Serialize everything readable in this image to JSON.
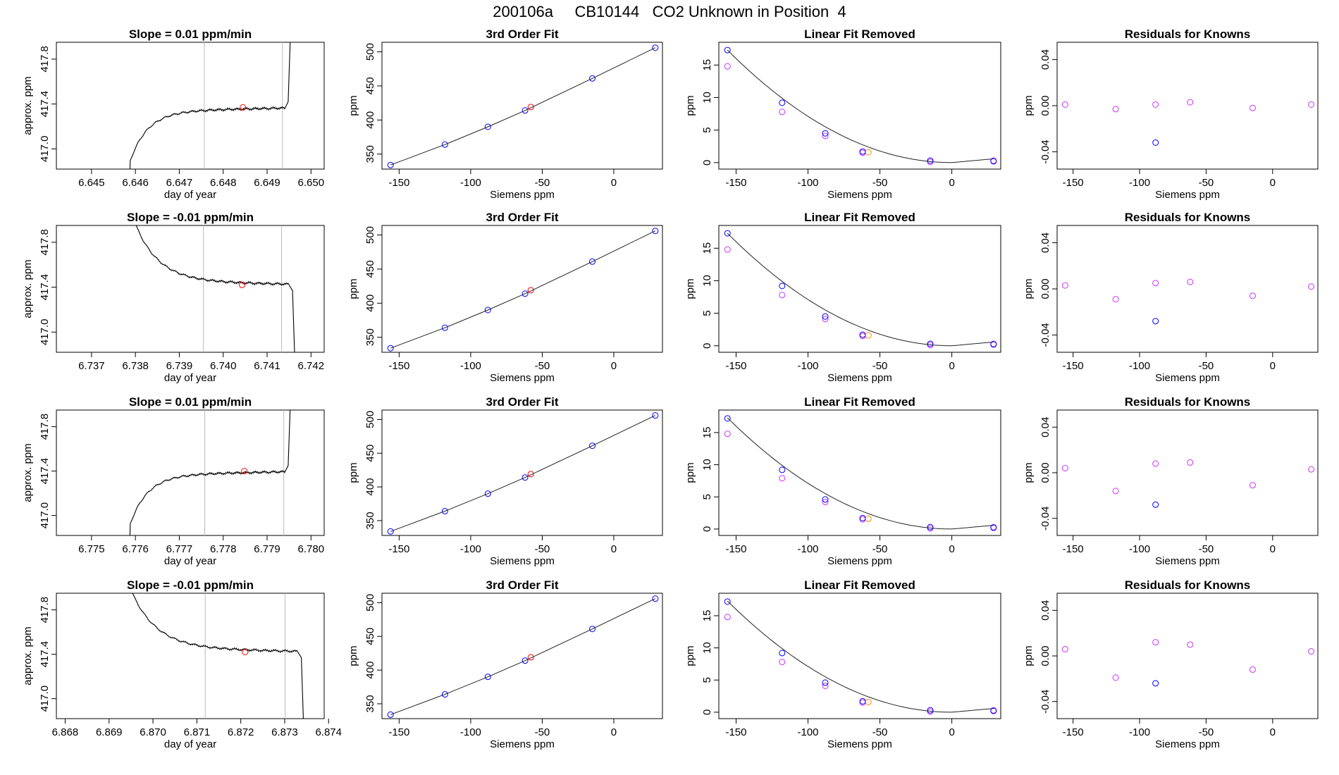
{
  "title": "200106a     CB10144   CO2 Unknown in Position  4",
  "colors": {
    "line": "#000000",
    "blue": "#0000ff",
    "magenta": "#cc33ff",
    "red": "#ff0000",
    "orange": "#ff8800",
    "gridline": "#bbbbbb"
  },
  "chart_data": [
    {
      "type": "line",
      "title": "Slope =  0.01  ppm/min",
      "xlabel": "day of year",
      "ylabel": "approx. ppm",
      "xlim": [
        6.6442,
        6.6503
      ],
      "ylim": [
        416.82,
        417.95
      ],
      "xticks": [
        6.645,
        6.646,
        6.647,
        6.648,
        6.649,
        6.65
      ],
      "xticklabels": [
        "6.645",
        "6.646",
        "6.647",
        "6.648",
        "6.649",
        "6.650"
      ],
      "yticks": [
        417.0,
        417.4,
        417.8
      ],
      "yticklabels": [
        "417.0",
        "417.4",
        "417.8"
      ],
      "vlines": [
        6.64757,
        6.64935
      ],
      "marker": [
        6.64845,
        417.37
      ],
      "shape": "rise",
      "x_end": [
        6.6458,
        6.6497
      ],
      "level": 417.37,
      "cut": 6.6494
    },
    {
      "type": "scatter",
      "title": "3rd Order Fit",
      "xlabel": "Siemens ppm",
      "ylabel": "ppm",
      "xlim": [
        -162,
        34
      ],
      "ylim": [
        328,
        514
      ],
      "xticks": [
        -150,
        -100,
        -50,
        0
      ],
      "xticklabels": [
        "-150",
        "-100",
        "-50",
        "0"
      ],
      "yticks": [
        350,
        400,
        450,
        500
      ],
      "yticklabels": [
        "350",
        "400",
        "450",
        "500"
      ],
      "points": [
        {
          "x": -156,
          "y": 334
        },
        {
          "x": -118,
          "y": 364
        },
        {
          "x": -88,
          "y": 390
        },
        {
          "x": -62,
          "y": 414
        },
        {
          "x": -15,
          "y": 461
        },
        {
          "x": 29,
          "y": 506
        }
      ],
      "unknown": {
        "x": -58,
        "y": 419
      }
    },
    {
      "type": "scatter",
      "title": "Linear Fit Removed",
      "xlabel": "Siemens ppm",
      "ylabel": "ppm",
      "xlim": [
        -162,
        34
      ],
      "ylim": [
        -1,
        18.5
      ],
      "xticks": [
        -150,
        -100,
        -50,
        0
      ],
      "xticklabels": [
        "-150",
        "-100",
        "-50",
        "0"
      ],
      "yticks": [
        0,
        5,
        10,
        15
      ],
      "yticklabels": [
        "0",
        "5",
        "10",
        "15"
      ],
      "blue_points": [
        {
          "x": -156,
          "y": 17.3
        },
        {
          "x": -118,
          "y": 9.2
        },
        {
          "x": -88,
          "y": 4.5
        },
        {
          "x": -62,
          "y": 1.7
        },
        {
          "x": -15,
          "y": 0.3
        },
        {
          "x": 29,
          "y": 0.2
        }
      ],
      "magenta_points": [
        {
          "x": -156,
          "y": 14.8
        },
        {
          "x": -118,
          "y": 7.8
        },
        {
          "x": -88,
          "y": 4.1
        },
        {
          "x": -62,
          "y": 1.5
        },
        {
          "x": -15,
          "y": 0.1
        },
        {
          "x": 29,
          "y": 0.3
        }
      ],
      "unknown": {
        "x": -58,
        "y": 1.6
      }
    },
    {
      "type": "scatter",
      "title": "Residuals for Knowns",
      "xlabel": "Siemens ppm",
      "ylabel": "ppm",
      "xlim": [
        -162,
        34
      ],
      "ylim": [
        -0.055,
        0.055
      ],
      "xticks": [
        -150,
        -100,
        -50,
        0
      ],
      "xticklabels": [
        "-150",
        "-100",
        "-50",
        "0"
      ],
      "yticks": [
        -0.04,
        0,
        0.04
      ],
      "yticklabels": [
        "-0.04",
        "0.00",
        "0.04"
      ],
      "magenta_points": [
        {
          "x": -156,
          "y": 0.001
        },
        {
          "x": -118,
          "y": -0.003
        },
        {
          "x": -88,
          "y": 0.001
        },
        {
          "x": -62,
          "y": 0.003
        },
        {
          "x": -15,
          "y": -0.002
        },
        {
          "x": 29,
          "y": 0.001
        }
      ],
      "blue_points": [
        {
          "x": -88,
          "y": -0.032
        }
      ]
    },
    {
      "type": "line",
      "title": "Slope =  -0.01  ppm/min",
      "xlabel": "day of year",
      "ylabel": "approx. ppm",
      "xlim": [
        6.7362,
        6.7423
      ],
      "ylim": [
        416.82,
        417.95
      ],
      "xticks": [
        6.737,
        6.738,
        6.739,
        6.74,
        6.741,
        6.742
      ],
      "xticklabels": [
        "6.737",
        "6.738",
        "6.739",
        "6.740",
        "6.741",
        "6.742"
      ],
      "yticks": [
        417.0,
        417.4,
        417.8
      ],
      "yticklabels": [
        "417.0",
        "417.4",
        "417.8"
      ],
      "vlines": [
        6.73955,
        6.74133
      ],
      "marker": [
        6.74043,
        417.42
      ],
      "shape": "fall",
      "x_end": [
        6.7378,
        6.7418
      ],
      "level": 417.42,
      "cut": 6.7415
    },
    {
      "type": "scatter",
      "title": "3rd Order Fit",
      "xlabel": "Siemens ppm",
      "ylabel": "ppm",
      "xlim": [
        -162,
        34
      ],
      "ylim": [
        328,
        514
      ],
      "xticks": [
        -150,
        -100,
        -50,
        0
      ],
      "xticklabels": [
        "-150",
        "-100",
        "-50",
        "0"
      ],
      "yticks": [
        350,
        400,
        450,
        500
      ],
      "yticklabels": [
        "350",
        "400",
        "450",
        "500"
      ],
      "points": [
        {
          "x": -156,
          "y": 334
        },
        {
          "x": -118,
          "y": 364
        },
        {
          "x": -88,
          "y": 390
        },
        {
          "x": -62,
          "y": 414
        },
        {
          "x": -15,
          "y": 461
        },
        {
          "x": 29,
          "y": 506
        }
      ],
      "unknown": {
        "x": -58,
        "y": 419
      }
    },
    {
      "type": "scatter",
      "title": "Linear Fit Removed",
      "xlabel": "Siemens ppm",
      "ylabel": "ppm",
      "xlim": [
        -162,
        34
      ],
      "ylim": [
        -1,
        18.5
      ],
      "xticks": [
        -150,
        -100,
        -50,
        0
      ],
      "xticklabels": [
        "-150",
        "-100",
        "-50",
        "0"
      ],
      "yticks": [
        0,
        5,
        10,
        15
      ],
      "yticklabels": [
        "0",
        "5",
        "10",
        "15"
      ],
      "blue_points": [
        {
          "x": -156,
          "y": 17.3
        },
        {
          "x": -118,
          "y": 9.2
        },
        {
          "x": -88,
          "y": 4.5
        },
        {
          "x": -62,
          "y": 1.7
        },
        {
          "x": -15,
          "y": 0.3
        },
        {
          "x": 29,
          "y": 0.2
        }
      ],
      "magenta_points": [
        {
          "x": -156,
          "y": 14.8
        },
        {
          "x": -118,
          "y": 7.8
        },
        {
          "x": -88,
          "y": 4.1
        },
        {
          "x": -62,
          "y": 1.5
        },
        {
          "x": -15,
          "y": 0.1
        },
        {
          "x": 29,
          "y": 0.3
        }
      ],
      "unknown": {
        "x": -58,
        "y": 1.6
      }
    },
    {
      "type": "scatter",
      "title": "Residuals for Knowns",
      "xlabel": "Siemens ppm",
      "ylabel": "ppm",
      "xlim": [
        -162,
        34
      ],
      "ylim": [
        -0.055,
        0.055
      ],
      "xticks": [
        -150,
        -100,
        -50,
        0
      ],
      "xticklabels": [
        "-150",
        "-100",
        "-50",
        "0"
      ],
      "yticks": [
        -0.04,
        0,
        0.04
      ],
      "yticklabels": [
        "-0.04",
        "0.00",
        "0.04"
      ],
      "magenta_points": [
        {
          "x": -156,
          "y": 0.003
        },
        {
          "x": -118,
          "y": -0.009
        },
        {
          "x": -88,
          "y": 0.005
        },
        {
          "x": -62,
          "y": 0.006
        },
        {
          "x": -15,
          "y": -0.006
        },
        {
          "x": 29,
          "y": 0.002
        }
      ],
      "blue_points": [
        {
          "x": -88,
          "y": -0.028
        }
      ]
    },
    {
      "type": "line",
      "title": "Slope =  0.01  ppm/min",
      "xlabel": "day of year",
      "ylabel": "approx. ppm",
      "xlim": [
        6.7742,
        6.7803
      ],
      "ylim": [
        416.82,
        417.95
      ],
      "xticks": [
        6.775,
        6.776,
        6.777,
        6.778,
        6.779,
        6.78
      ],
      "xticklabels": [
        "6.775",
        "6.776",
        "6.777",
        "6.778",
        "6.779",
        "6.780"
      ],
      "yticks": [
        417.0,
        417.4,
        417.8
      ],
      "yticklabels": [
        "417.0",
        "417.4",
        "417.8"
      ],
      "vlines": [
        6.77758,
        6.77938
      ],
      "marker": [
        6.77848,
        417.4
      ],
      "shape": "rise",
      "x_end": [
        6.7758,
        6.7797
      ],
      "level": 417.4,
      "cut": 6.7794
    },
    {
      "type": "scatter",
      "title": "3rd Order Fit",
      "xlabel": "Siemens ppm",
      "ylabel": "ppm",
      "xlim": [
        -162,
        34
      ],
      "ylim": [
        328,
        514
      ],
      "xticks": [
        -150,
        -100,
        -50,
        0
      ],
      "xticklabels": [
        "-150",
        "-100",
        "-50",
        "0"
      ],
      "yticks": [
        350,
        400,
        450,
        500
      ],
      "yticklabels": [
        "350",
        "400",
        "450",
        "500"
      ],
      "points": [
        {
          "x": -156,
          "y": 334
        },
        {
          "x": -118,
          "y": 364
        },
        {
          "x": -88,
          "y": 390
        },
        {
          "x": -62,
          "y": 414
        },
        {
          "x": -15,
          "y": 461
        },
        {
          "x": 29,
          "y": 506
        }
      ],
      "unknown": {
        "x": -58,
        "y": 419
      }
    },
    {
      "type": "scatter",
      "title": "Linear Fit Removed",
      "xlabel": "Siemens ppm",
      "ylabel": "ppm",
      "xlim": [
        -162,
        34
      ],
      "ylim": [
        -1,
        18.5
      ],
      "xticks": [
        -150,
        -100,
        -50,
        0
      ],
      "xticklabels": [
        "-150",
        "-100",
        "-50",
        "0"
      ],
      "yticks": [
        0,
        5,
        10,
        15
      ],
      "yticklabels": [
        "0",
        "5",
        "10",
        "15"
      ],
      "blue_points": [
        {
          "x": -156,
          "y": 17.2
        },
        {
          "x": -118,
          "y": 9.2
        },
        {
          "x": -88,
          "y": 4.6
        },
        {
          "x": -62,
          "y": 1.7
        },
        {
          "x": -15,
          "y": 0.3
        },
        {
          "x": 29,
          "y": 0.2
        }
      ],
      "magenta_points": [
        {
          "x": -156,
          "y": 14.8
        },
        {
          "x": -118,
          "y": 7.9
        },
        {
          "x": -88,
          "y": 4.2
        },
        {
          "x": -62,
          "y": 1.5
        },
        {
          "x": -15,
          "y": 0.1
        },
        {
          "x": 29,
          "y": 0.3
        }
      ],
      "unknown": {
        "x": -58,
        "y": 1.6
      }
    },
    {
      "type": "scatter",
      "title": "Residuals for Knowns",
      "xlabel": "Siemens ppm",
      "ylabel": "ppm",
      "xlim": [
        -162,
        34
      ],
      "ylim": [
        -0.055,
        0.055
      ],
      "xticks": [
        -150,
        -100,
        -50,
        0
      ],
      "xticklabels": [
        "-150",
        "-100",
        "-50",
        "0"
      ],
      "yticks": [
        -0.04,
        0,
        0.04
      ],
      "yticklabels": [
        "-0.04",
        "0.00",
        "0.04"
      ],
      "magenta_points": [
        {
          "x": -156,
          "y": 0.004
        },
        {
          "x": -118,
          "y": -0.016
        },
        {
          "x": -88,
          "y": 0.008
        },
        {
          "x": -62,
          "y": 0.009
        },
        {
          "x": -15,
          "y": -0.011
        },
        {
          "x": 29,
          "y": 0.003
        }
      ],
      "blue_points": [
        {
          "x": -88,
          "y": -0.028
        }
      ]
    },
    {
      "type": "line",
      "title": "Slope =  -0.01  ppm/min",
      "xlabel": "day of year",
      "ylabel": "approx. ppm",
      "xlim": [
        6.8678,
        6.8739
      ],
      "ylim": [
        416.82,
        417.95
      ],
      "xticks": [
        6.868,
        6.869,
        6.87,
        6.871,
        6.872,
        6.873,
        6.874
      ],
      "xticklabels": [
        "6.868",
        "6.869",
        "6.870",
        "6.871",
        "6.872",
        "6.873",
        "6.874"
      ],
      "yticks": [
        417.0,
        417.4,
        417.8
      ],
      "yticklabels": [
        "417.0",
        "417.4",
        "417.8"
      ],
      "vlines": [
        6.87119,
        6.87301
      ],
      "marker": [
        6.8721,
        417.42
      ],
      "shape": "fall",
      "x_end": [
        6.8693,
        6.8735
      ],
      "level": 417.42,
      "cut": 6.8733
    },
    {
      "type": "scatter",
      "title": "3rd Order Fit",
      "xlabel": "Siemens ppm",
      "ylabel": "ppm",
      "xlim": [
        -162,
        34
      ],
      "ylim": [
        328,
        514
      ],
      "xticks": [
        -150,
        -100,
        -50,
        0
      ],
      "xticklabels": [
        "-150",
        "-100",
        "-50",
        "0"
      ],
      "yticks": [
        350,
        400,
        450,
        500
      ],
      "yticklabels": [
        "350",
        "400",
        "450",
        "500"
      ],
      "points": [
        {
          "x": -156,
          "y": 334
        },
        {
          "x": -118,
          "y": 364
        },
        {
          "x": -88,
          "y": 390
        },
        {
          "x": -62,
          "y": 414
        },
        {
          "x": -15,
          "y": 461
        },
        {
          "x": 29,
          "y": 506
        }
      ],
      "unknown": {
        "x": -58,
        "y": 419
      }
    },
    {
      "type": "scatter",
      "title": "Linear Fit Removed",
      "xlabel": "Siemens ppm",
      "ylabel": "ppm",
      "xlim": [
        -162,
        34
      ],
      "ylim": [
        -1,
        18.5
      ],
      "xticks": [
        -150,
        -100,
        -50,
        0
      ],
      "xticklabels": [
        "-150",
        "-100",
        "-50",
        "0"
      ],
      "yticks": [
        0,
        5,
        10,
        15
      ],
      "yticklabels": [
        "0",
        "5",
        "10",
        "15"
      ],
      "blue_points": [
        {
          "x": -156,
          "y": 17.2
        },
        {
          "x": -118,
          "y": 9.2
        },
        {
          "x": -88,
          "y": 4.6
        },
        {
          "x": -62,
          "y": 1.7
        },
        {
          "x": -15,
          "y": 0.3
        },
        {
          "x": 29,
          "y": 0.2
        }
      ],
      "magenta_points": [
        {
          "x": -156,
          "y": 14.8
        },
        {
          "x": -118,
          "y": 7.8
        },
        {
          "x": -88,
          "y": 4.1
        },
        {
          "x": -62,
          "y": 1.5
        },
        {
          "x": -15,
          "y": 0.1
        },
        {
          "x": 29,
          "y": 0.3
        }
      ],
      "unknown": {
        "x": -58,
        "y": 1.6
      }
    },
    {
      "type": "scatter",
      "title": "Residuals for Knowns",
      "xlabel": "Siemens ppm",
      "ylabel": "ppm",
      "xlim": [
        -162,
        34
      ],
      "ylim": [
        -0.055,
        0.055
      ],
      "xticks": [
        -150,
        -100,
        -50,
        0
      ],
      "xticklabels": [
        "-150",
        "-100",
        "-50",
        "0"
      ],
      "yticks": [
        -0.04,
        0,
        0.04
      ],
      "yticklabels": [
        "-0.04",
        "0.00",
        "0.04"
      ],
      "magenta_points": [
        {
          "x": -156,
          "y": 0.006
        },
        {
          "x": -118,
          "y": -0.019
        },
        {
          "x": -88,
          "y": 0.012
        },
        {
          "x": -62,
          "y": 0.01
        },
        {
          "x": -15,
          "y": -0.012
        },
        {
          "x": 29,
          "y": 0.004
        }
      ],
      "blue_points": [
        {
          "x": -88,
          "y": -0.024
        }
      ]
    }
  ]
}
